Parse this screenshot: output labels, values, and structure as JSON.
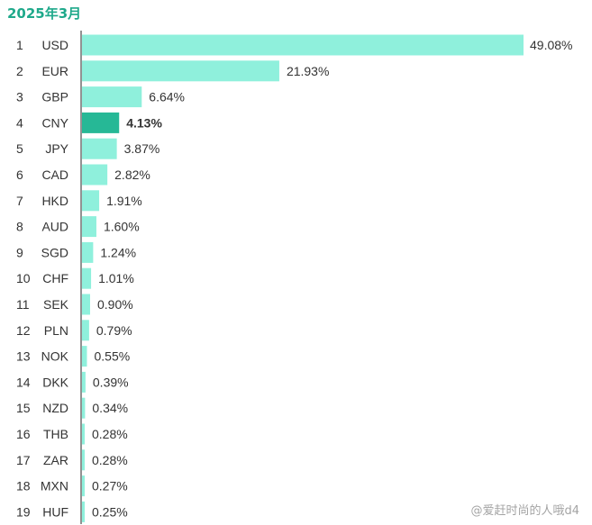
{
  "chart_data": {
    "type": "bar",
    "orientation": "horizontal",
    "title": "2025年3月",
    "ranks": [
      "1",
      "2",
      "3",
      "4",
      "5",
      "6",
      "7",
      "8",
      "9",
      "10",
      "11",
      "12",
      "13",
      "14",
      "15",
      "16",
      "17",
      "18",
      "19"
    ],
    "categories": [
      "USD",
      "EUR",
      "GBP",
      "CNY",
      "JPY",
      "CAD",
      "HKD",
      "AUD",
      "SGD",
      "CHF",
      "SEK",
      "PLN",
      "NOK",
      "DKK",
      "NZD",
      "THB",
      "ZAR",
      "MXN",
      "HUF"
    ],
    "values": [
      49.08,
      21.93,
      6.64,
      4.13,
      3.87,
      2.82,
      1.91,
      1.6,
      1.24,
      1.01,
      0.9,
      0.79,
      0.55,
      0.39,
      0.34,
      0.28,
      0.28,
      0.27,
      0.25
    ],
    "value_labels": [
      "49.08%",
      "21.93%",
      "6.64%",
      "4.13%",
      "3.87%",
      "2.82%",
      "1.91%",
      "1.60%",
      "1.24%",
      "1.01%",
      "0.90%",
      "0.79%",
      "0.55%",
      "0.39%",
      "0.34%",
      "0.28%",
      "0.28%",
      "0.27%",
      "0.25%"
    ],
    "highlight_category": "CNY",
    "xlim": [
      0,
      49.08
    ],
    "grid": false,
    "colors": {
      "bar": "#8ff0dc",
      "highlight": "#26b896",
      "axis": "#4a4a4a",
      "text": "#333333",
      "title": "#1fa98b"
    }
  },
  "watermark": "@爱赶时尚的人哦d4"
}
